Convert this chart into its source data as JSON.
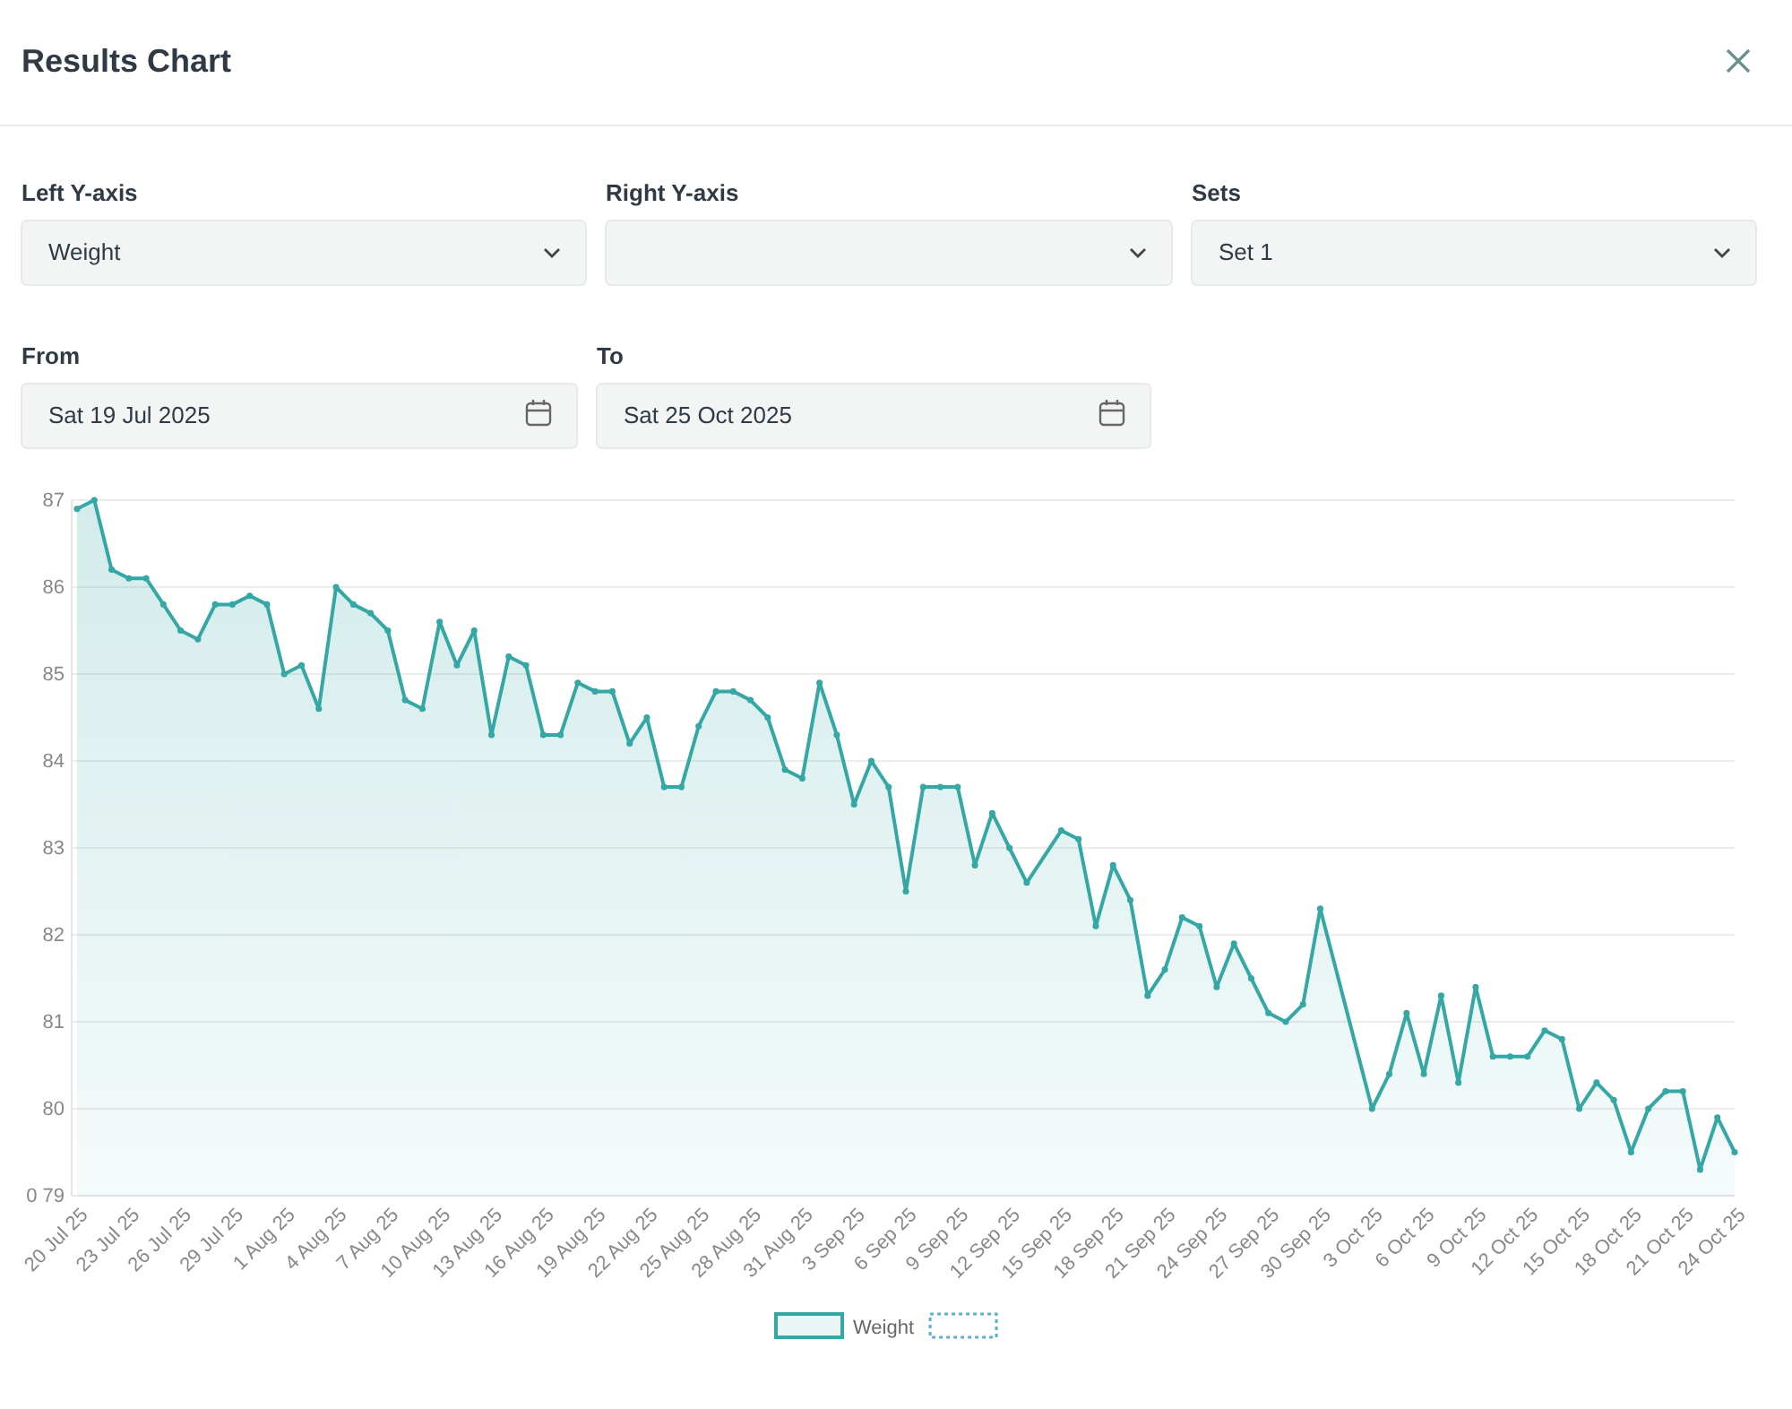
{
  "chart_data": {
    "type": "area",
    "title": "Results Chart",
    "annotations": [
      "Left Y-axis",
      "Weight",
      "Right Y-axis",
      "Sets",
      "Set 1",
      "From",
      "Sat 19 Jul 2025",
      "To",
      "Sat 25 Oct 2025"
    ],
    "x": [
      "2025-07-20",
      "2025-07-21",
      "2025-07-22",
      "2025-07-23",
      "2025-07-24",
      "2025-07-25",
      "2025-07-26",
      "2025-07-27",
      "2025-07-28",
      "2025-07-29",
      "2025-07-30",
      "2025-07-31",
      "2025-08-01",
      "2025-08-02",
      "2025-08-03",
      "2025-08-04",
      "2025-08-05",
      "2025-08-06",
      "2025-08-07",
      "2025-08-08",
      "2025-08-09",
      "2025-08-10",
      "2025-08-11",
      "2025-08-12",
      "2025-08-13",
      "2025-08-14",
      "2025-08-15",
      "2025-08-16",
      "2025-08-17",
      "2025-08-18",
      "2025-08-19",
      "2025-08-20",
      "2025-08-21",
      "2025-08-22",
      "2025-08-23",
      "2025-08-24",
      "2025-08-25",
      "2025-08-26",
      "2025-08-27",
      "2025-08-28",
      "2025-08-29",
      "2025-08-30",
      "2025-08-31",
      "2025-09-01",
      "2025-09-02",
      "2025-09-03",
      "2025-09-04",
      "2025-09-05",
      "2025-09-06",
      "2025-09-07",
      "2025-09-08",
      "2025-09-09",
      "2025-09-10",
      "2025-09-11",
      "2025-09-12",
      "2025-09-13",
      "2025-09-15",
      "2025-09-16",
      "2025-09-17",
      "2025-09-18",
      "2025-09-19",
      "2025-09-20",
      "2025-09-21",
      "2025-09-22",
      "2025-09-23",
      "2025-09-24",
      "2025-09-25",
      "2025-09-26",
      "2025-09-27",
      "2025-09-28",
      "2025-09-29",
      "2025-09-30",
      "2025-10-03",
      "2025-10-04",
      "2025-10-05",
      "2025-10-06",
      "2025-10-07",
      "2025-10-08",
      "2025-10-09",
      "2025-10-10",
      "2025-10-11",
      "2025-10-12",
      "2025-10-13",
      "2025-10-14",
      "2025-10-15",
      "2025-10-16",
      "2025-10-17",
      "2025-10-18",
      "2025-10-19",
      "2025-10-20",
      "2025-10-21",
      "2025-10-22",
      "2025-10-23",
      "2025-10-24"
    ],
    "series": [
      {
        "name": "Weight",
        "color": "#35a7a4",
        "values": [
          86.9,
          87.0,
          86.2,
          86.1,
          86.1,
          85.8,
          85.5,
          85.4,
          85.8,
          85.8,
          85.9,
          85.8,
          85.0,
          85.1,
          84.6,
          86.0,
          85.8,
          85.7,
          85.5,
          84.7,
          84.6,
          85.6,
          85.1,
          85.5,
          84.3,
          85.2,
          85.1,
          84.3,
          84.3,
          84.9,
          84.8,
          84.8,
          84.2,
          84.5,
          83.7,
          83.7,
          84.4,
          84.8,
          84.8,
          84.7,
          84.5,
          83.9,
          83.8,
          84.9,
          84.3,
          83.5,
          84.0,
          83.7,
          82.5,
          83.7,
          83.7,
          83.7,
          82.8,
          83.4,
          83.0,
          82.6,
          83.2,
          83.1,
          82.1,
          82.8,
          82.4,
          81.3,
          81.6,
          82.2,
          82.1,
          81.4,
          81.9,
          81.5,
          81.1,
          81.0,
          81.2,
          82.3,
          80.0,
          80.4,
          81.1,
          80.4,
          81.3,
          80.3,
          81.4,
          80.6,
          80.6,
          80.6,
          80.9,
          80.8,
          80.0,
          80.3,
          80.1,
          79.5,
          80.0,
          80.2,
          80.2,
          79.3,
          79.9,
          79.5
        ]
      }
    ],
    "xlim": [
      "2025-07-20",
      "2025-10-24"
    ],
    "xticks": [
      {
        "value": "2025-07-20",
        "label": "20 Jul 25"
      },
      {
        "value": "2025-07-23",
        "label": "23 Jul 25"
      },
      {
        "value": "2025-07-26",
        "label": "26 Jul 25"
      },
      {
        "value": "2025-07-29",
        "label": "29 Jul 25"
      },
      {
        "value": "2025-08-01",
        "label": "1 Aug 25"
      },
      {
        "value": "2025-08-04",
        "label": "4 Aug 25"
      },
      {
        "value": "2025-08-07",
        "label": "7 Aug 25"
      },
      {
        "value": "2025-08-10",
        "label": "10 Aug 25"
      },
      {
        "value": "2025-08-13",
        "label": "13 Aug 25"
      },
      {
        "value": "2025-08-16",
        "label": "16 Aug 25"
      },
      {
        "value": "2025-08-19",
        "label": "19 Aug 25"
      },
      {
        "value": "2025-08-22",
        "label": "22 Aug 25"
      },
      {
        "value": "2025-08-25",
        "label": "25 Aug 25"
      },
      {
        "value": "2025-08-28",
        "label": "28 Aug 25"
      },
      {
        "value": "2025-08-31",
        "label": "31 Aug 25"
      },
      {
        "value": "2025-09-03",
        "label": "3 Sep 25"
      },
      {
        "value": "2025-09-06",
        "label": "6 Sep 25"
      },
      {
        "value": "2025-09-09",
        "label": "9 Sep 25"
      },
      {
        "value": "2025-09-12",
        "label": "12 Sep 25"
      },
      {
        "value": "2025-09-15",
        "label": "15 Sep 25"
      },
      {
        "value": "2025-09-18",
        "label": "18 Sep 25"
      },
      {
        "value": "2025-09-21",
        "label": "21 Sep 25"
      },
      {
        "value": "2025-09-24",
        "label": "24 Sep 25"
      },
      {
        "value": "2025-09-27",
        "label": "27 Sep 25"
      },
      {
        "value": "2025-09-30",
        "label": "30 Sep 25"
      },
      {
        "value": "2025-10-03",
        "label": "3 Oct 25"
      },
      {
        "value": "2025-10-06",
        "label": "6 Oct 25"
      },
      {
        "value": "2025-10-09",
        "label": "9 Oct 25"
      },
      {
        "value": "2025-10-12",
        "label": "12 Oct 25"
      },
      {
        "value": "2025-10-15",
        "label": "15 Oct 25"
      },
      {
        "value": "2025-10-18",
        "label": "18 Oct 25"
      },
      {
        "value": "2025-10-21",
        "label": "21 Oct 25"
      },
      {
        "value": "2025-10-24",
        "label": "24 Oct 25"
      }
    ],
    "ylim": [
      79,
      87
    ],
    "yticks": [
      {
        "value": 79,
        "label": "0 79"
      },
      80,
      81,
      82,
      83,
      84,
      85,
      86,
      87
    ],
    "grid": "y",
    "legend": "bottom",
    "marker": "circle",
    "line_style": "solid"
  }
}
